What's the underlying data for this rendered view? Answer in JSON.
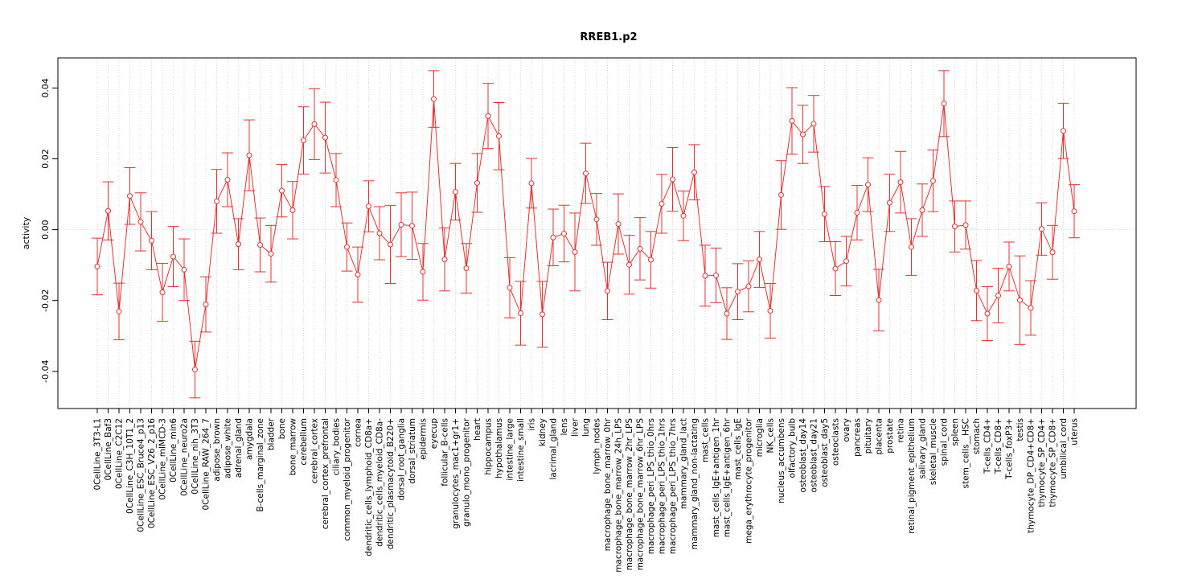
{
  "chart_data": {
    "type": "line",
    "title": "RREB1.p2",
    "xlabel": "",
    "ylabel": "activity",
    "ylim": [
      -0.0505,
      0.0485
    ],
    "yticks": [
      -0.04,
      -0.02,
      0.0,
      0.02,
      0.04
    ],
    "ytick_labels": [
      "-0.04",
      "-0.02",
      "0.00",
      "0.02",
      "0.04"
    ],
    "grid": "dotted vertical lines at each category; dotted horizontal line at 0",
    "color": "#e8302f",
    "error_bars": true,
    "categories": [
      "0CellLine_3T3-L1",
      "0CellLine_Baf3",
      "0CellLine_C2C12",
      "0CellLine_C3H_10T1_2",
      "0CellLine_ESC_Bruce4_p13",
      "0CellLine_ESC_V26_2_p16",
      "0CellLine_mIMCD-3",
      "0CellLine_min6",
      "0CellLine_neuro2a",
      "0CellLine_nih_3T3",
      "0CellLine_RAW_264_7",
      "adipose_brown",
      "adipose_white",
      "adrenal_gland",
      "amygdala",
      "B-cells_marginal_zone",
      "bladder",
      "bone",
      "bone_marrow",
      "cerebellum",
      "cerebral_cortex",
      "cerebral_cortex_prefrontal",
      "ciliary_bodies",
      "common_myeloid_progenitor",
      "cornea",
      "dendritic_cells_lymphoid_CD8a+",
      "dendritic_cells_myeloid_CD8a-",
      "dendritic_plasmacytoid_B220+",
      "dorsal_root_ganglia",
      "dorsal_striatum",
      "epidermis",
      "eyecup",
      "follicular_B-cells",
      "granulocytes_mac1+gr1+",
      "granulo_mono_progenitor",
      "heart",
      "hippocampus",
      "hypothalamus",
      "intestine_large",
      "intestine_small",
      "iris",
      "kidney",
      "lacrimal_gland",
      "lens",
      "liver",
      "lung",
      "lymph_nodes",
      "macrophage_bone_marrow_0hr",
      "macrophage_bone_marrow_24h_LPS",
      "macrophage_bone_marrow_2hr_LPS",
      "macrophage_bone_marrow_6hr_LPS",
      "macrophage_peri_LPS_thio_0hrs",
      "macrophage_peri_LPS_thio_1hrs",
      "macrophage_peri_LPS_thio_7hrs",
      "mammary_gland_lact",
      "mammary_gland_non-lactating",
      "mast_cells",
      "mast_cells_IgE+antigen_1hr",
      "mast_cells_IgE+antigen_6hr",
      "mast_cells_IgE",
      "mega_erythrocyte_progenitor",
      "microglia",
      "NK_cells",
      "nucleus_accumbens",
      "olfactory_bulb",
      "osteoblast_day14",
      "osteoblast_day21",
      "osteoblast_day5",
      "osteoclasts",
      "ovary",
      "pancreas",
      "pituitary",
      "placenta",
      "prostate",
      "retina",
      "retinal_pigment_epithelium",
      "salivary_gland",
      "skeletal_muscle",
      "spinal_cord",
      "spleen",
      "stem_cells__HSC",
      "stomach",
      "T-cells_CD4+",
      "T-cells_CD8+",
      "T-cells_foxP3+",
      "testis",
      "thymocyte_DP_CD4+CD8+",
      "thymocyte_SP_CD4+",
      "thymocyte_SP_CD8+",
      "umbilical_cord",
      "uterus"
    ],
    "values": [
      -0.0104,
      0.0053,
      -0.0231,
      0.0095,
      0.0022,
      -0.0031,
      -0.0177,
      -0.0076,
      -0.0113,
      -0.0395,
      -0.0211,
      0.008,
      0.0141,
      -0.0041,
      0.021,
      -0.0043,
      -0.0068,
      0.011,
      0.0055,
      0.0252,
      0.0298,
      0.026,
      0.014,
      -0.0049,
      -0.0127,
      0.0066,
      -0.001,
      -0.0042,
      0.0014,
      0.0011,
      -0.0119,
      0.0369,
      -0.0084,
      0.0107,
      -0.0109,
      0.0132,
      0.0321,
      0.0264,
      -0.0164,
      -0.0236,
      0.0131,
      -0.0239,
      -0.0022,
      -0.0011,
      -0.0063,
      0.0159,
      0.0029,
      -0.0173,
      0.0016,
      -0.0099,
      -0.0054,
      -0.0085,
      0.0073,
      0.0142,
      0.0039,
      0.0162,
      -0.013,
      -0.0129,
      -0.0237,
      -0.0175,
      -0.016,
      -0.0084,
      -0.0229,
      0.0098,
      0.0307,
      0.0269,
      0.0299,
      0.0044,
      -0.011,
      -0.0089,
      0.0048,
      0.0127,
      -0.0199,
      0.0076,
      0.0134,
      -0.0049,
      0.0055,
      0.0138,
      0.0356,
      0.0009,
      0.0013,
      -0.0172,
      -0.0237,
      -0.0186,
      -0.0104,
      -0.0199,
      -0.0221,
      0.0002,
      -0.0064,
      0.0279,
      0.0052
    ],
    "error_halfwidths": [
      0.008,
      0.0082,
      0.008,
      0.008,
      0.0082,
      0.0082,
      0.0082,
      0.0085,
      0.0087,
      0.008,
      0.0078,
      0.009,
      0.0076,
      0.0072,
      0.01,
      0.0076,
      0.008,
      0.0074,
      0.0081,
      0.0095,
      0.01,
      0.01,
      0.0075,
      0.0068,
      0.0078,
      0.0072,
      0.0075,
      0.011,
      0.009,
      0.0095,
      0.008,
      0.008,
      0.0089,
      0.008,
      0.007,
      0.0083,
      0.0092,
      0.0095,
      0.0085,
      0.009,
      0.007,
      0.0093,
      0.008,
      0.008,
      0.011,
      0.0085,
      0.0073,
      0.0081,
      0.0085,
      0.0083,
      0.0088,
      0.008,
      0.0083,
      0.009,
      0.007,
      0.0078,
      0.0086,
      0.0077,
      0.0073,
      0.0079,
      0.0072,
      0.0079,
      0.0077,
      0.0097,
      0.0094,
      0.0082,
      0.008,
      0.0078,
      0.0076,
      0.007,
      0.0077,
      0.0076,
      0.0087,
      0.0081,
      0.0087,
      0.008,
      0.0074,
      0.0087,
      0.0093,
      0.0072,
      0.0068,
      0.0085,
      0.0076,
      0.0077,
      0.0069,
      0.0125,
      0.0077,
      0.0074,
      0.0076,
      0.0078,
      0.0075
    ]
  }
}
